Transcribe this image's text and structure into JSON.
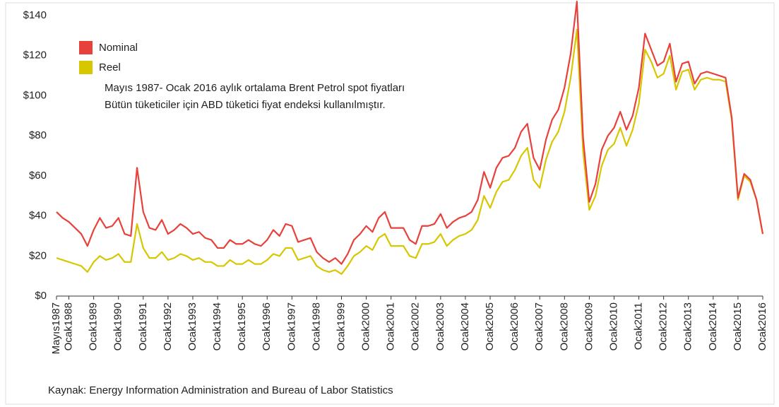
{
  "chart_data": {
    "type": "line",
    "annotations": [
      "Mayıs 1987- Ocak 2016 aylık ortalama Brent Petrol spot fiyatları",
      "Bütün tüketiciler için ABD tüketici fiyat endeksi kullanılmıştır."
    ],
    "source": "Kaynak: Energy Information Administration and Bureau of Labor Statistics",
    "categories": [
      "Mayıs1987",
      null,
      "Ocak1988",
      null,
      null,
      null,
      "Ocak1989",
      null,
      null,
      null,
      "Ocak1990",
      null,
      null,
      null,
      "Ocak1991",
      null,
      null,
      null,
      "Ocak1992",
      null,
      null,
      null,
      "Ocak1993",
      null,
      null,
      null,
      "Ocak1994",
      null,
      null,
      null,
      "Ocak1995",
      null,
      null,
      null,
      "Ocak1996",
      null,
      null,
      null,
      "Ocak1997",
      null,
      null,
      null,
      "Ocak1998",
      null,
      null,
      null,
      "Ocak1999",
      null,
      null,
      null,
      "Ocak2000",
      null,
      null,
      null,
      "Ocak2001",
      null,
      null,
      null,
      "Ocak2002",
      null,
      null,
      null,
      "Ocak2003",
      null,
      null,
      null,
      "Ocak2004",
      null,
      null,
      null,
      "Ocak2005",
      null,
      null,
      null,
      "Ocak2006",
      null,
      null,
      null,
      "Ocak2007",
      null,
      null,
      null,
      "Ocak2008",
      null,
      null,
      null,
      "Ocak2009",
      null,
      null,
      null,
      "Ocak2010",
      null,
      null,
      null,
      "Ocak2011",
      null,
      null,
      null,
      "Ocak2012",
      null,
      null,
      null,
      "Ocak2013",
      null,
      null,
      null,
      "Ocak2014",
      null,
      null,
      null,
      "Ocak2015",
      null,
      null,
      null,
      "Ocak2016"
    ],
    "series": [
      {
        "name": "Nominal",
        "color": "#e8413c",
        "values": [
          42,
          39,
          37,
          34,
          31,
          25,
          33,
          39,
          34,
          35,
          39,
          31,
          30,
          64,
          42,
          34,
          33,
          38,
          31,
          33,
          36,
          34,
          31,
          32,
          29,
          28,
          24,
          24,
          28,
          26,
          26,
          28,
          26,
          25,
          28,
          33,
          30,
          36,
          35,
          27,
          28,
          29,
          22,
          19,
          17,
          19,
          16,
          21,
          28,
          31,
          35,
          32,
          39,
          42,
          34,
          34,
          34,
          28,
          26,
          35,
          35,
          36,
          41,
          34,
          37,
          39,
          40,
          42,
          48,
          62,
          54,
          64,
          69,
          70,
          74,
          82,
          86,
          69,
          63,
          78,
          88,
          93,
          104,
          121,
          147,
          79,
          47,
          56,
          73,
          80,
          84,
          92,
          83,
          90,
          104,
          131,
          123,
          115,
          117,
          126,
          107,
          116,
          117,
          106,
          111,
          112,
          111,
          110,
          109,
          89,
          49,
          61,
          58,
          48,
          31
        ]
      },
      {
        "name": "Reel",
        "color": "#d6c700",
        "values": [
          19,
          18,
          17,
          16,
          15,
          12,
          17,
          20,
          18,
          19,
          21,
          17,
          17,
          36,
          24,
          19,
          19,
          22,
          18,
          19,
          21,
          20,
          18,
          19,
          17,
          17,
          15,
          15,
          18,
          16,
          16,
          18,
          16,
          16,
          18,
          21,
          20,
          24,
          24,
          18,
          19,
          20,
          15,
          13,
          12,
          13,
          11,
          15,
          20,
          22,
          25,
          23,
          29,
          31,
          25,
          25,
          25,
          20,
          19,
          26,
          26,
          27,
          31,
          25,
          28,
          30,
          31,
          33,
          38,
          50,
          44,
          52,
          57,
          58,
          63,
          70,
          74,
          58,
          54,
          68,
          77,
          82,
          92,
          109,
          133,
          72,
          43,
          50,
          65,
          73,
          76,
          84,
          75,
          83,
          96,
          123,
          117,
          109,
          111,
          120,
          103,
          112,
          113,
          103,
          108,
          109,
          108,
          108,
          107,
          88,
          48,
          60,
          57,
          48,
          31
        ]
      }
    ],
    "ylim": [
      0,
      140
    ],
    "yticks": [
      {
        "value": 0,
        "label": "$0"
      },
      {
        "value": 20,
        "label": "$20"
      },
      {
        "value": 40,
        "label": "$40"
      },
      {
        "value": 60,
        "label": "$60"
      },
      {
        "value": 80,
        "label": "$80"
      },
      {
        "value": 100,
        "label": "$100"
      },
      {
        "value": 120,
        "label": "$120"
      },
      {
        "value": 140,
        "label": "$140"
      }
    ],
    "grid": false,
    "legend": "upper left"
  }
}
